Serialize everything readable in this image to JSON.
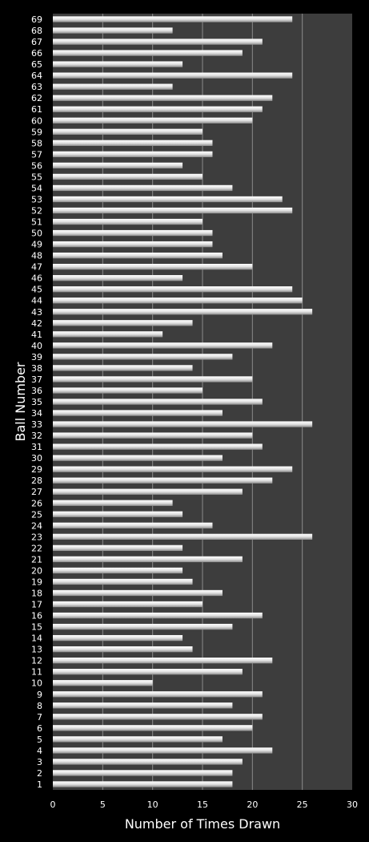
{
  "chart_data": {
    "type": "bar",
    "orientation": "horizontal",
    "xlabel": "Number of Times Drawn",
    "ylabel": "Ball Number",
    "xlim": [
      0,
      30
    ],
    "xticks": [
      "0",
      "5",
      "10",
      "15",
      "20",
      "25",
      "30"
    ],
    "grid": true,
    "categories": [
      "1",
      "2",
      "3",
      "4",
      "5",
      "6",
      "7",
      "8",
      "9",
      "10",
      "11",
      "12",
      "13",
      "14",
      "15",
      "16",
      "17",
      "18",
      "19",
      "20",
      "21",
      "22",
      "23",
      "24",
      "25",
      "26",
      "27",
      "28",
      "29",
      "30",
      "31",
      "32",
      "33",
      "34",
      "35",
      "36",
      "37",
      "38",
      "39",
      "40",
      "41",
      "42",
      "43",
      "44",
      "45",
      "46",
      "47",
      "48",
      "49",
      "50",
      "51",
      "52",
      "53",
      "54",
      "55",
      "56",
      "57",
      "58",
      "59",
      "60",
      "61",
      "62",
      "63",
      "64",
      "65",
      "66",
      "67",
      "68",
      "69"
    ],
    "values": [
      18,
      18,
      19,
      22,
      17,
      20,
      21,
      18,
      21,
      10,
      19,
      22,
      14,
      13,
      18,
      21,
      15,
      17,
      14,
      13,
      19,
      13,
      26,
      16,
      13,
      12,
      19,
      22,
      24,
      17,
      21,
      20,
      26,
      17,
      21,
      15,
      20,
      14,
      18,
      22,
      11,
      14,
      26,
      25,
      24,
      13,
      20,
      17,
      16,
      16,
      15,
      24,
      23,
      18,
      15,
      13,
      16,
      16,
      15,
      20,
      21,
      22,
      12,
      24,
      13,
      19,
      21,
      12,
      24
    ],
    "colors": {
      "background": "#000000",
      "plot_area": "#3d3d3d",
      "gridline": "#8a8a8a",
      "bar_fill": "#e8e8e8",
      "text": "#ffffff"
    }
  }
}
